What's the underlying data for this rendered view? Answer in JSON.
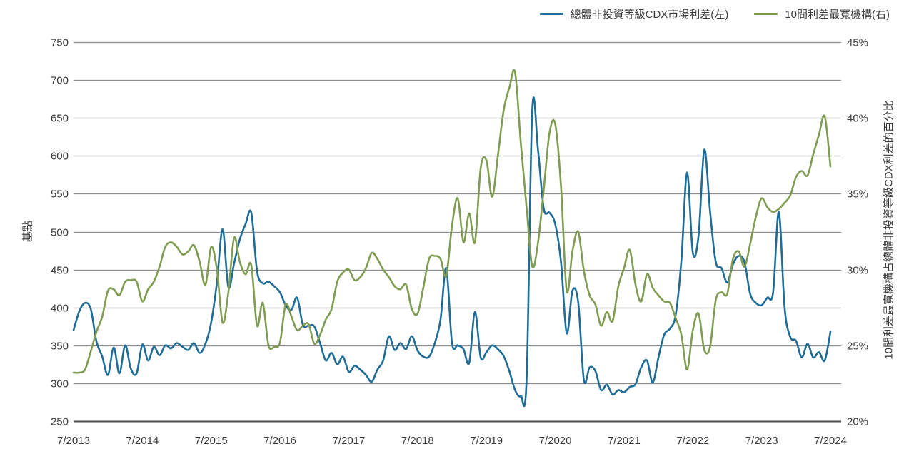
{
  "legend": {
    "items": [
      {
        "label": "總體非投資等級CDX市場利差(左)",
        "color": "#1F6C96"
      },
      {
        "label": "10間利差最寬機構(右)",
        "color": "#7F9C52"
      }
    ]
  },
  "chart_data": {
    "type": "line",
    "frequency": "monthly",
    "start": "7/2013",
    "end": "7/2024",
    "grid": "horizontal",
    "legend_position": "top-right",
    "x_tick_labels": [
      "7/2013",
      "7/2014",
      "7/2015",
      "7/2016",
      "7/2017",
      "7/2018",
      "7/2019",
      "7/2020",
      "7/2021",
      "7/2022",
      "7/2023",
      "7/2024"
    ],
    "left_axis": {
      "title": "基點",
      "min": 250,
      "max": 750,
      "tick_step": 50,
      "tick_labels": [
        "250",
        "300",
        "350",
        "400",
        "450",
        "500",
        "550",
        "600",
        "650",
        "700",
        "750"
      ]
    },
    "right_axis": {
      "title": "10間利差最寬機構占總體非投資等級CDX利差的百分比",
      "min": 20,
      "max": 45,
      "tick_step": 5,
      "unit": "%",
      "tick_labels": [
        "20%",
        "25%",
        "30%",
        "35%",
        "40%",
        "45%"
      ]
    },
    "series": [
      {
        "name": "總體非投資等級CDX市場利差(左)",
        "axis": "left",
        "unit": "bp",
        "color": "#1F6C96",
        "values": [
          370,
          395,
          406,
          398,
          355,
          335,
          311,
          347,
          313,
          350,
          319,
          313,
          351,
          330,
          348,
          337,
          350,
          346,
          353,
          348,
          344,
          353,
          340,
          352,
          380,
          433,
          503,
          427,
          458,
          490,
          510,
          525,
          448,
          432,
          434,
          428,
          420,
          403,
          397,
          413,
          377,
          376,
          375,
          353,
          330,
          340,
          325,
          335,
          315,
          323,
          318,
          311,
          302,
          318,
          330,
          362,
          344,
          353,
          345,
          362,
          343,
          335,
          335,
          353,
          384,
          452,
          353,
          350,
          345,
          327,
          394,
          334,
          341,
          350,
          345,
          336,
          316,
          291,
          283,
          304,
          661,
          607,
          530,
          525,
          510,
          460,
          366,
          422,
          407,
          304,
          321,
          316,
          291,
          298,
          285,
          291,
          288,
          295,
          299,
          321,
          330,
          301,
          334,
          364,
          372,
          390,
          462,
          578,
          472,
          495,
          608,
          527,
          460,
          452,
          433,
          457,
          468,
          460,
          418,
          406,
          403,
          413,
          420,
          526,
          400,
          361,
          356,
          334,
          352,
          334,
          341,
          330,
          368
        ]
      },
      {
        "name": "10間利差最寬機構(右)",
        "axis": "right",
        "unit": "%",
        "color": "#7F9C52",
        "values": [
          23.2,
          23.2,
          23.4,
          24.6,
          25.9,
          26.9,
          28.6,
          28.7,
          28.3,
          29.2,
          29.3,
          29.2,
          27.9,
          28.7,
          29.2,
          30.2,
          31.5,
          31.8,
          31.5,
          31.0,
          31.2,
          31.6,
          30.5,
          29.0,
          31.5,
          30.0,
          26.5,
          28.5,
          32.1,
          30.5,
          29.7,
          30.3,
          26.3,
          27.8,
          25.0,
          24.9,
          25.2,
          27.7,
          26.9,
          26.0,
          26.3,
          26.4,
          25.1,
          25.7,
          26.7,
          27.4,
          29.2,
          29.8,
          30.0,
          29.3,
          29.5,
          30.1,
          31.1,
          30.7,
          30.0,
          29.5,
          28.9,
          28.7,
          29.0,
          27.4,
          27.1,
          28.8,
          30.7,
          30.9,
          30.7,
          29.6,
          32.9,
          34.7,
          31.8,
          33.7,
          31.8,
          36.7,
          37.2,
          34.8,
          37.5,
          40.5,
          42.0,
          43.0,
          38.3,
          34.1,
          30.2,
          31.8,
          35.3,
          39.0,
          39.6,
          35.5,
          28.6,
          31.2,
          32.5,
          29.9,
          28.3,
          27.7,
          26.3,
          27.2,
          26.6,
          28.9,
          30.1,
          31.3,
          29.0,
          27.9,
          29.7,
          28.8,
          28.3,
          27.9,
          27.8,
          26.8,
          25.7,
          23.4,
          26.0,
          27.1,
          24.7,
          24.9,
          28.0,
          28.5,
          28.4,
          30.7,
          31.2,
          30.2,
          31.7,
          33.5,
          34.7,
          34.1,
          33.8,
          34.0,
          34.4,
          34.9,
          36.1,
          36.5,
          36.2,
          37.6,
          38.9,
          40.1,
          36.8
        ]
      }
    ]
  },
  "styles": {
    "grid_color": "#8A8C8F",
    "axis_line_color": "#4E4F52",
    "text_color": "#3A3A3C",
    "background": "#FFFFFF"
  }
}
